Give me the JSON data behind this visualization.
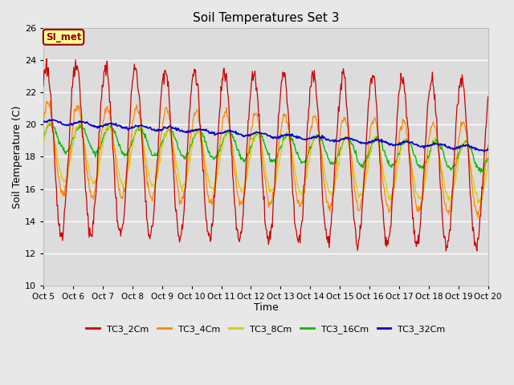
{
  "title": "Soil Temperatures Set 3",
  "xlabel": "Time",
  "ylabel": "Soil Temperature (C)",
  "ylim": [
    10,
    26
  ],
  "yticks": [
    10,
    12,
    14,
    16,
    18,
    20,
    22,
    24,
    26
  ],
  "x_labels": [
    "Oct 5",
    "Oct 6",
    "Oct 7",
    "Oct 8",
    "Oct 9",
    "Oct 10",
    "Oct 11",
    "Oct 12",
    "Oct 13",
    "Oct 14",
    "Oct 15",
    "Oct 16",
    "Oct 17",
    "Oct 18",
    "Oct 19",
    "Oct 20"
  ],
  "series_colors": [
    "#cc0000",
    "#ff8800",
    "#ddcc00",
    "#00bb00",
    "#0000cc"
  ],
  "series_names": [
    "TC3_2Cm",
    "TC3_4Cm",
    "TC3_8Cm",
    "TC3_16Cm",
    "TC3_32Cm"
  ],
  "fig_facecolor": "#e8e8e8",
  "plot_bg_color": "#dcdcdc",
  "grid_color": "#ffffff",
  "annotation_text": "SI_met",
  "annotation_color": "#990000",
  "annotation_bg": "#ffff99",
  "n_days": 15,
  "n_per_day": 48
}
